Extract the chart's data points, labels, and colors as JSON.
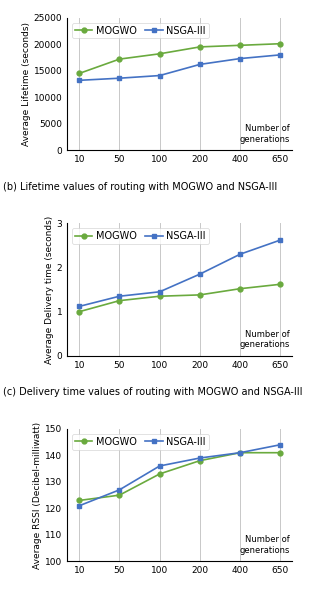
{
  "x": [
    10,
    50,
    100,
    200,
    400,
    650
  ],
  "x_labels": [
    "10",
    "50",
    "100",
    "200",
    "400",
    "650"
  ],
  "chart1": {
    "mogwo": [
      14500,
      17200,
      18200,
      19500,
      19800,
      20100
    ],
    "nsga3": [
      13200,
      13600,
      14100,
      16200,
      17300,
      18000
    ],
    "ylabel": "Average Lifetime (seconds)",
    "ylim": [
      0,
      25000
    ],
    "yticks": [
      0,
      5000,
      10000,
      15000,
      20000,
      25000
    ],
    "caption": "(b) Lifetime values of routing with MOGWO and NSGA-III"
  },
  "chart2": {
    "mogwo": [
      1.0,
      1.25,
      1.35,
      1.38,
      1.52,
      1.62
    ],
    "nsga3": [
      1.12,
      1.35,
      1.45,
      1.85,
      2.3,
      2.62
    ],
    "ylabel": "Average Delivery time (seconds)",
    "ylim": [
      0,
      3
    ],
    "yticks": [
      0,
      1,
      2,
      3
    ],
    "caption": "(c) Delivery time values of routing with MOGWO and NSGA-III"
  },
  "chart3": {
    "mogwo": [
      123,
      125,
      133,
      138,
      141,
      141
    ],
    "nsga3": [
      121,
      127,
      136,
      139,
      141,
      144
    ],
    "ylabel": "Average RSSI (Decibel-milliwatt)",
    "ylim": [
      100,
      150
    ],
    "yticks": [
      100,
      110,
      120,
      130,
      140,
      150
    ],
    "caption": ""
  },
  "mogwo_color": "#6aaa3e",
  "nsga3_color": "#4472c4",
  "xlabel_text": "Number of\ngenerations",
  "legend_mogwo": "MOGWO",
  "legend_nsga3": "NSGA-III",
  "grid_color": "#c8c8c8",
  "bg_color": "#ffffff",
  "caption_fontsize": 7.0,
  "tick_fontsize": 6.5,
  "label_fontsize": 6.5,
  "legend_fontsize": 7.0
}
